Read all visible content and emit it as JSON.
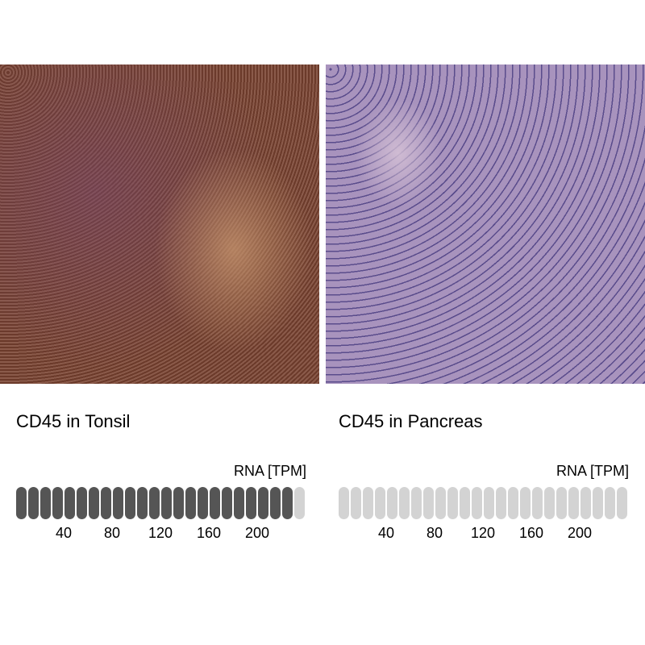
{
  "panels": [
    {
      "title": "CD45 in Tonsil",
      "image": "tonsil-ihc-image",
      "rna_label": "RNA [TPM]",
      "ticks": [
        "40",
        "80",
        "120",
        "160",
        "200"
      ],
      "bars_total": 24,
      "bars_filled": 23
    },
    {
      "title": "CD45 in Pancreas",
      "image": "pancreas-ihc-image",
      "rna_label": "RNA [TPM]",
      "ticks": [
        "40",
        "80",
        "120",
        "160",
        "200"
      ],
      "bars_total": 24,
      "bars_filled": 0
    }
  ],
  "colors": {
    "filled": "#555555",
    "empty": "#d3d3d3"
  }
}
